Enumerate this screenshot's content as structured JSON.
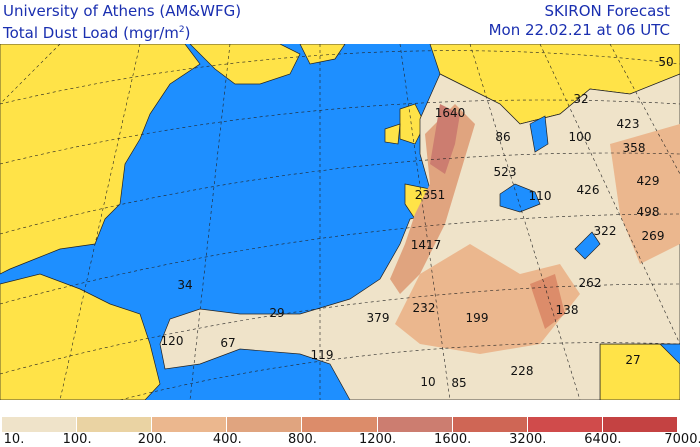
{
  "header": {
    "institution": "University of Athens (AM&WFG)",
    "product": "SKIRON Forecast",
    "variable": "Total Dust Load (mgr/m",
    "variable_sup": "2",
    "variable_end": ")",
    "valid_time": "Mon 22.02.21 at 06 UTC"
  },
  "map": {
    "colors": {
      "ocean": "#1e8fff",
      "land_no_dust": "#ffe348",
      "border": "#222222"
    },
    "labels": [
      "34",
      "29",
      "67",
      "120",
      "119",
      "379",
      "232",
      "199",
      "138",
      "262",
      "228",
      "85",
      "10",
      "27",
      "1417",
      "2351",
      "1640",
      "86",
      "523",
      "110",
      "426",
      "100",
      "32",
      "423",
      "358",
      "429",
      "498",
      "322",
      "269",
      "50"
    ]
  },
  "legend": {
    "ticks": [
      "10.",
      "100.",
      "200.",
      "400.",
      "800.",
      "1200.",
      "1600.",
      "3200.",
      "6400.",
      "7000."
    ],
    "colors": [
      "#efe3c9",
      "#ead3a3",
      "#ebb78e",
      "#e0a47f",
      "#dc8c6a",
      "#cc7d70",
      "#cf6655",
      "#d04b4b",
      "#c44242"
    ]
  }
}
